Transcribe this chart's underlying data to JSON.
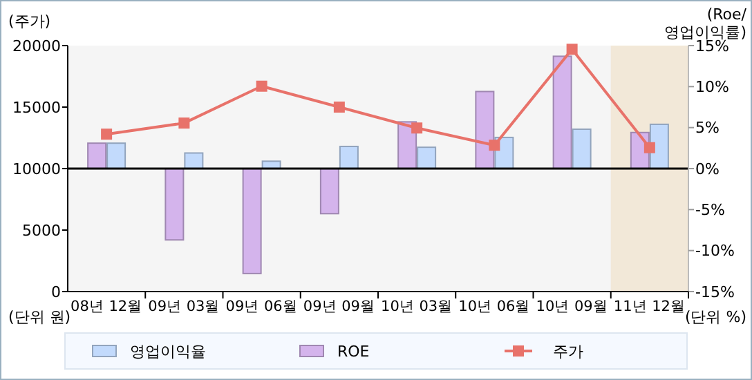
{
  "chart_data": {
    "type": "bar",
    "ylabel": "(주가)",
    "y2label": "(Roe/\n영업이익률)",
    "annotations": [
      "(단위 원)",
      "(단위 %)"
    ],
    "categories": [
      "08년 12월",
      "09년 03월",
      "09년 06월",
      "09년 09월",
      "10년 03월",
      "10년 06월",
      "10년 09월",
      "11년 12월"
    ],
    "series": [
      {
        "name": "영업이익율",
        "axis": "y2",
        "color": "#c2dafc",
        "values": [
          3.1,
          1.9,
          0.9,
          2.7,
          2.6,
          3.8,
          4.8,
          5.4
        ]
      },
      {
        "name": "ROE",
        "axis": "y2",
        "color": "#d4b4ec",
        "values": [
          3.1,
          -8.7,
          -12.8,
          -5.5,
          5.7,
          9.4,
          13.7,
          4.4
        ]
      },
      {
        "name": "주가",
        "type": "line",
        "color": "#e8726a",
        "marker": "square",
        "values": [
          12800,
          13700,
          16700,
          15000,
          13300,
          11900,
          19700,
          11700
        ]
      }
    ],
    "ylim": [
      0,
      20000
    ],
    "yticks": [
      0,
      5000,
      10000,
      15000,
      20000
    ],
    "y2lim": [
      -15,
      15
    ],
    "y2ticks": [
      {
        "value": -15,
        "label": "-15%"
      },
      {
        "value": -10,
        "label": "-10%"
      },
      {
        "value": -5,
        "label": "-5%"
      },
      {
        "value": 0,
        "label": "0%"
      },
      {
        "value": 5,
        "label": "5%"
      },
      {
        "value": 10,
        "label": "10%"
      },
      {
        "value": 15,
        "label": "15%"
      }
    ],
    "ref_lines": [
      {
        "axis": "y2",
        "value": 0,
        "color": "#000000"
      }
    ],
    "bands": [
      {
        "axis": "x",
        "from": "11년 12월",
        "to": "11년 12월",
        "color": "#f2e8d8"
      }
    ],
    "grid": false,
    "legend": "bottom"
  }
}
